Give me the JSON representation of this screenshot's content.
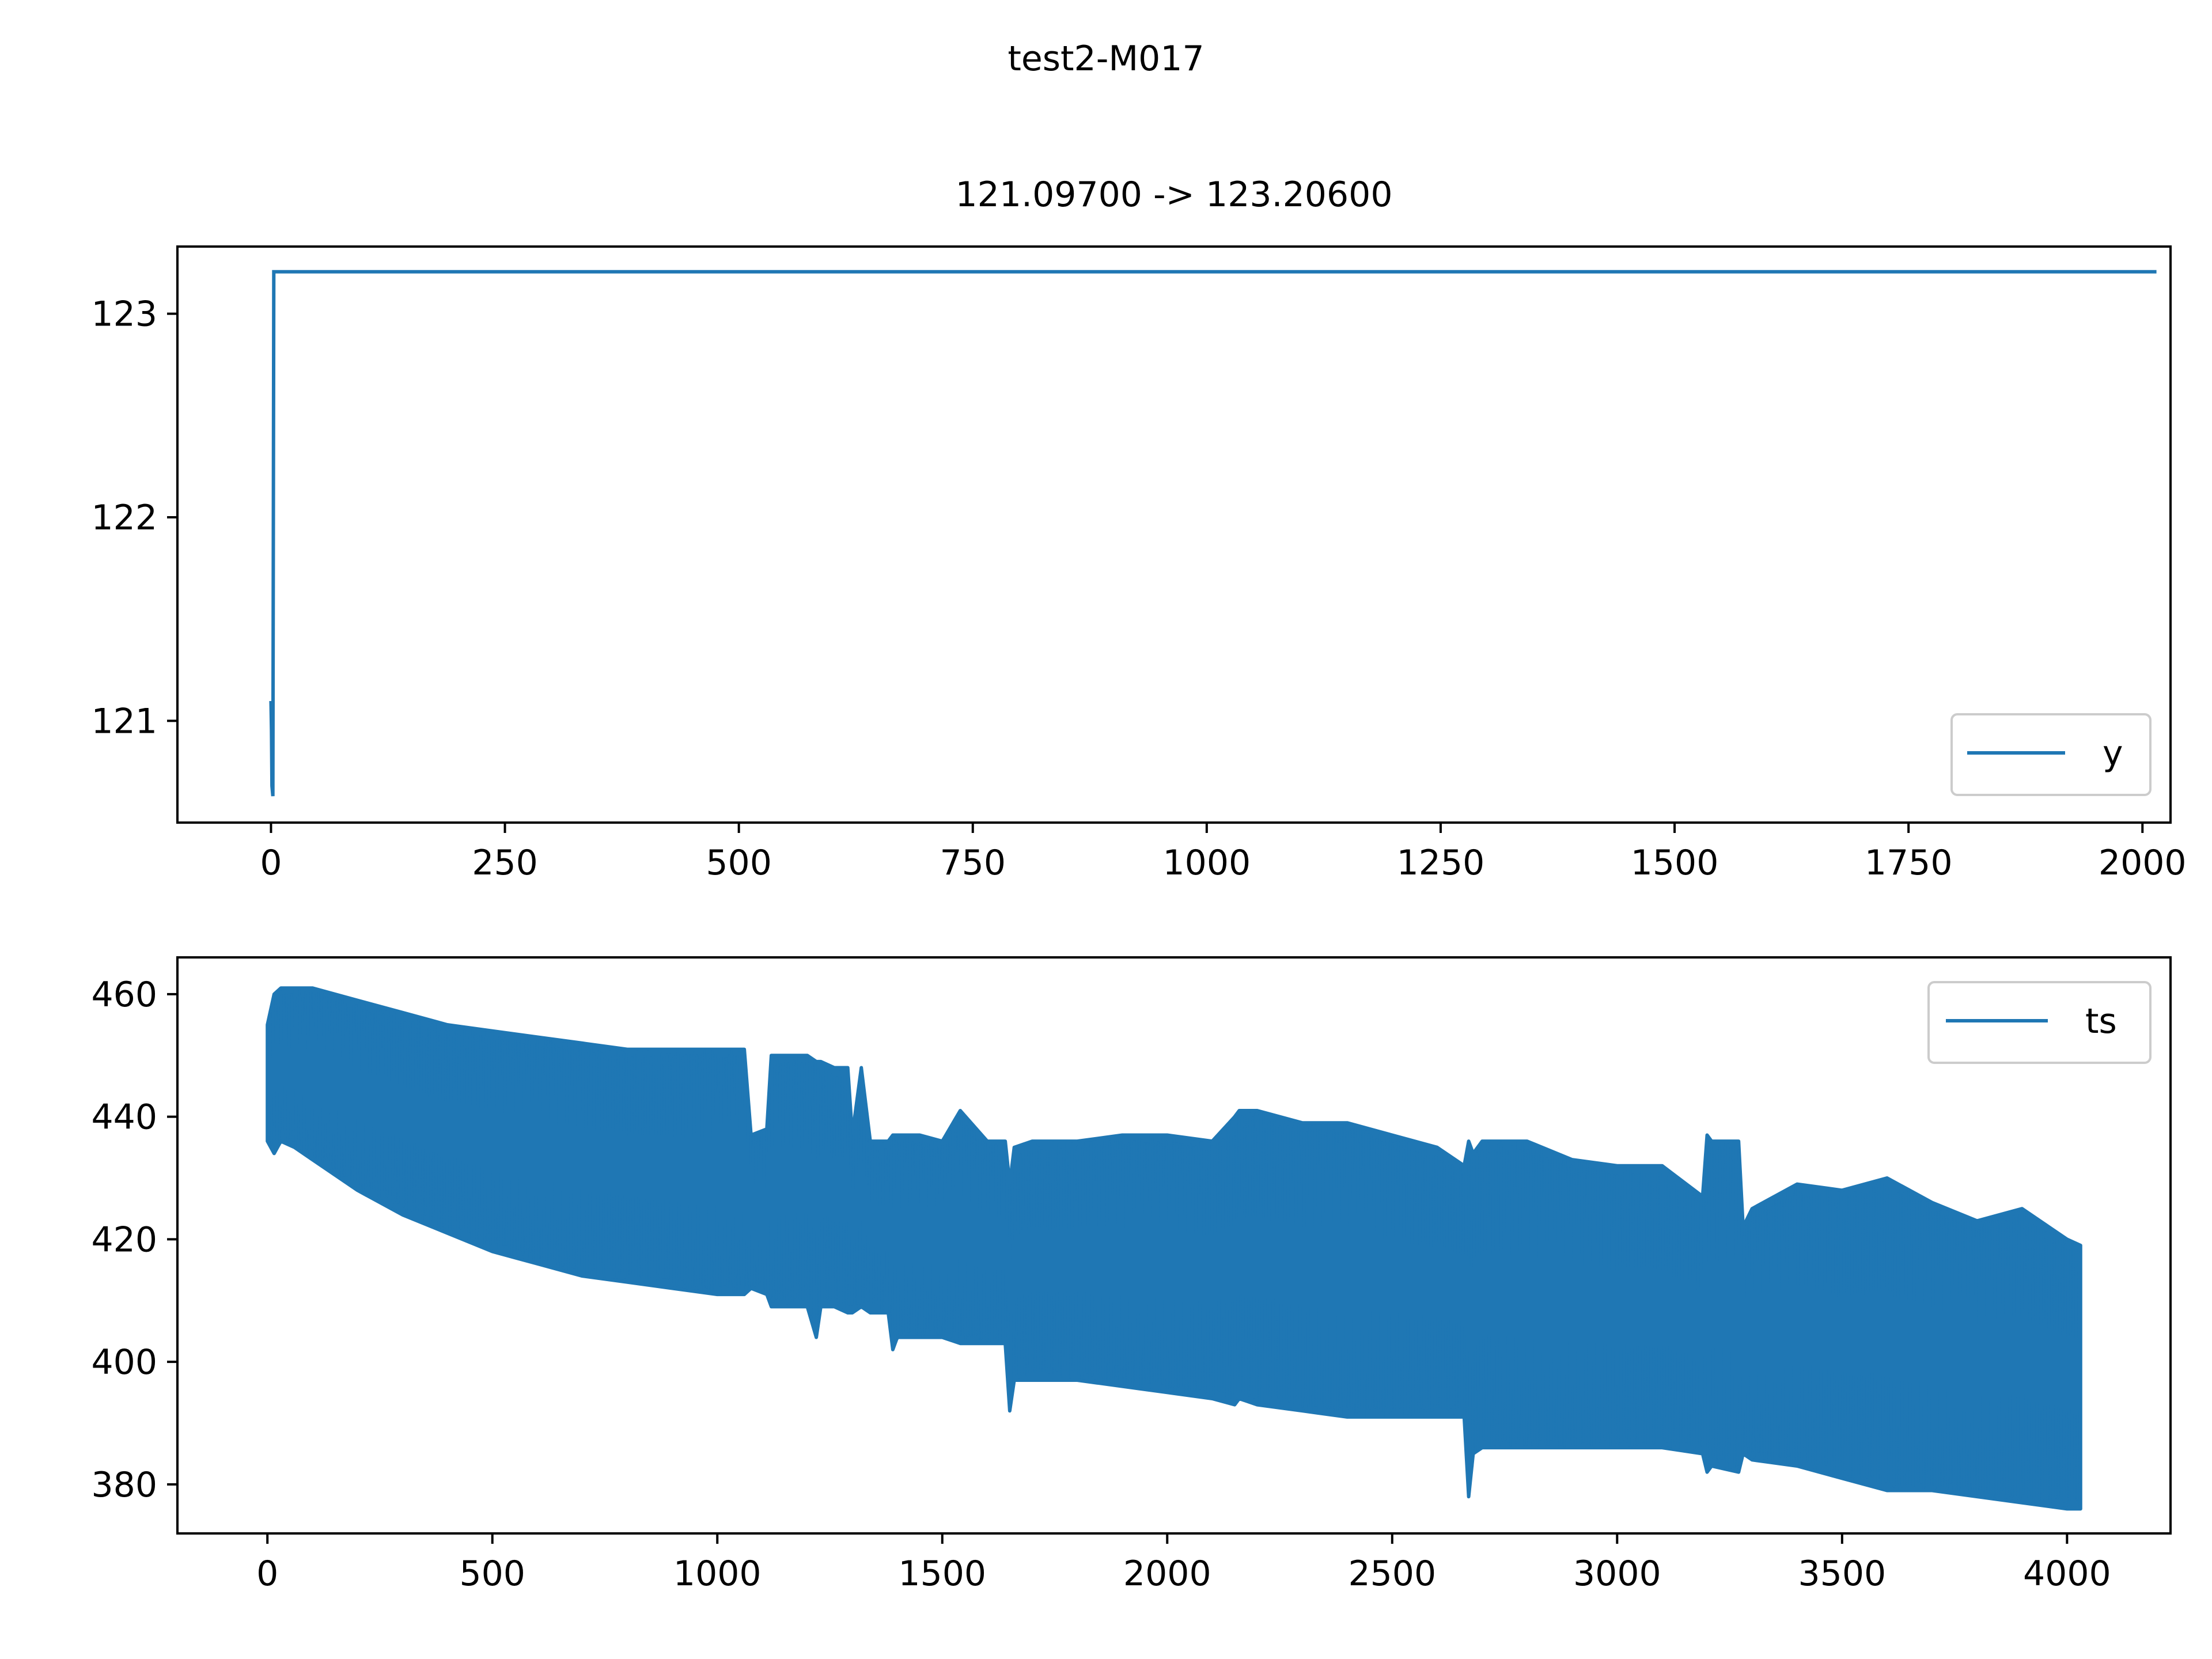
{
  "figure": {
    "suptitle": "test2-M017"
  },
  "colors": {
    "series": "#1f77b4",
    "axes": "#000000",
    "legend_border": "#cccccc"
  },
  "chart_data": [
    {
      "type": "line",
      "title": "121.09700 -> 123.20600",
      "xlabel": "",
      "ylabel": "",
      "xlim": [
        -100,
        2030
      ],
      "ylim": [
        120.5,
        123.33
      ],
      "xticks": [
        0,
        250,
        500,
        750,
        1000,
        1250,
        1500,
        1750,
        2000
      ],
      "xtick_labels": [
        "0",
        "250",
        "500",
        "750",
        "1000",
        "1250",
        "1500",
        "1750",
        "2000"
      ],
      "yticks": [
        121,
        122,
        123
      ],
      "ytick_labels": [
        "121",
        "122",
        "123"
      ],
      "legend": {
        "position": "lower-right",
        "entries": [
          "y"
        ]
      },
      "grid": false,
      "series": [
        {
          "name": "y",
          "x": [
            0,
            0.5,
            1,
            2,
            3,
            4,
            2015
          ],
          "y": [
            121.097,
            120.95,
            120.68,
            120.63,
            123.206,
            123.206,
            123.206
          ]
        }
      ]
    },
    {
      "type": "line",
      "title": "",
      "xlabel": "",
      "ylabel": "",
      "xlim": [
        -200,
        4230
      ],
      "ylim": [
        372,
        466
      ],
      "xticks": [
        0,
        500,
        1000,
        1500,
        2000,
        2500,
        3000,
        3500,
        4000
      ],
      "xtick_labels": [
        "0",
        "500",
        "1000",
        "1500",
        "2000",
        "2500",
        "3000",
        "3500",
        "4000"
      ],
      "yticks": [
        380,
        400,
        420,
        440,
        460
      ],
      "ytick_labels": [
        "380",
        "400",
        "420",
        "440",
        "460"
      ],
      "legend": {
        "position": "upper-right",
        "entries": [
          "ts"
        ]
      },
      "grid": false,
      "series": [
        {
          "name": "ts",
          "note_shape": "dense oscillation between lower and upper envelope",
          "x": [
            0,
            15,
            30,
            60,
            100,
            200,
            300,
            400,
            500,
            600,
            700,
            800,
            900,
            1000,
            1060,
            1075,
            1110,
            1120,
            1200,
            1220,
            1230,
            1260,
            1290,
            1300,
            1320,
            1340,
            1380,
            1390,
            1400,
            1410,
            1450,
            1500,
            1540,
            1600,
            1640,
            1650,
            1660,
            1700,
            1800,
            1900,
            2000,
            2100,
            2150,
            2160,
            2200,
            2300,
            2400,
            2500,
            2600,
            2660,
            2670,
            2680,
            2700,
            2800,
            2900,
            3000,
            3100,
            3190,
            3200,
            3210,
            3270,
            3280,
            3300,
            3400,
            3500,
            3600,
            3700,
            3800,
            3900,
            4000,
            4030
          ],
          "lower": [
            436,
            434,
            436,
            435,
            433,
            428,
            424,
            421,
            418,
            416,
            414,
            413,
            412,
            411,
            411,
            412,
            411,
            409,
            409,
            404,
            409,
            409,
            408,
            408,
            409,
            408,
            408,
            402,
            404,
            404,
            404,
            404,
            403,
            403,
            403,
            392,
            397,
            397,
            397,
            396,
            395,
            394,
            393,
            394,
            393,
            392,
            391,
            391,
            391,
            391,
            378,
            385,
            386,
            386,
            386,
            386,
            386,
            385,
            382,
            383,
            382,
            385,
            384,
            383,
            381,
            379,
            379,
            378,
            377,
            376,
            376
          ],
          "upper": [
            455,
            460,
            461,
            461,
            461,
            459,
            457,
            455,
            454,
            453,
            452,
            451,
            451,
            451,
            451,
            437,
            438,
            450,
            450,
            449,
            449,
            448,
            448,
            437,
            448,
            436,
            436,
            437,
            437,
            437,
            437,
            436,
            441,
            436,
            436,
            429,
            435,
            436,
            436,
            437,
            437,
            436,
            440,
            441,
            441,
            439,
            439,
            437,
            435,
            432,
            436,
            434,
            436,
            436,
            433,
            432,
            432,
            427,
            437,
            436,
            436,
            422,
            425,
            429,
            428,
            430,
            426,
            423,
            425,
            420,
            419
          ]
        }
      ]
    }
  ]
}
